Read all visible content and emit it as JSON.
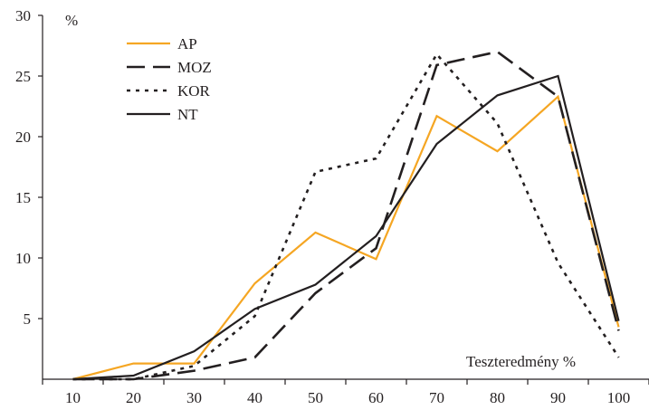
{
  "chart_data": {
    "type": "line",
    "title": "",
    "xlabel": "Teszteredmény %",
    "ylabel": "%",
    "x": [
      10,
      20,
      30,
      40,
      50,
      60,
      70,
      80,
      90,
      100
    ],
    "xlim": [
      5,
      105
    ],
    "ylim": [
      0,
      30
    ],
    "yticks": [
      5,
      10,
      15,
      20,
      25,
      30
    ],
    "xticks": [
      10,
      20,
      30,
      40,
      50,
      60,
      70,
      80,
      90,
      100
    ],
    "grid": false,
    "legend_position": "top-left",
    "series": [
      {
        "name": "AP",
        "color": "#f5a623",
        "style": "solid",
        "values": [
          0,
          1.3,
          1.3,
          7.9,
          12.1,
          9.9,
          21.7,
          18.8,
          23.3,
          4.3
        ]
      },
      {
        "name": "MOZ",
        "color": "#231f20",
        "style": "dashed",
        "values": [
          0,
          0,
          0.7,
          1.8,
          7.1,
          10.8,
          25.9,
          27.0,
          23.3,
          4.0
        ]
      },
      {
        "name": "KOR",
        "color": "#231f20",
        "style": "dotted",
        "values": [
          0,
          0,
          1.1,
          5.2,
          17.1,
          18.2,
          26.8,
          21.1,
          9.6,
          1.8
        ]
      },
      {
        "name": "NT",
        "color": "#231f20",
        "style": "solid",
        "values": [
          0,
          0.3,
          2.3,
          5.8,
          7.8,
          11.8,
          19.4,
          23.4,
          25.0,
          4.8
        ]
      }
    ]
  }
}
